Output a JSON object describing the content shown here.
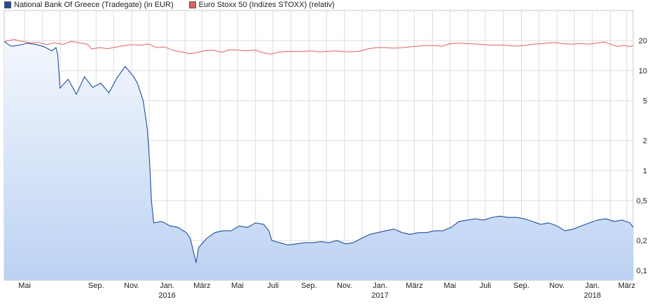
{
  "chart_data": {
    "type": "line",
    "title": "",
    "xlabel": "",
    "ylabel": "",
    "y_scale": "log",
    "ylim": [
      0.08,
      40
    ],
    "y_ticks": [
      {
        "value": 20,
        "label": "20"
      },
      {
        "value": 10,
        "label": "10"
      },
      {
        "value": 5,
        "label": "5"
      },
      {
        "value": 2,
        "label": "2"
      },
      {
        "value": 1,
        "label": "1"
      },
      {
        "value": 0.5,
        "label": "0,5"
      },
      {
        "value": 0.2,
        "label": "0,2"
      },
      {
        "value": 0.1,
        "label": "0,1"
      }
    ],
    "x_ticks": [
      {
        "date": "2015-05-01",
        "label": "Mai"
      },
      {
        "date": "2015-09-01",
        "label": "Sep."
      },
      {
        "date": "2015-11-01",
        "label": "Nov."
      },
      {
        "date": "2016-01-01",
        "label": "Jan.",
        "year": "2016"
      },
      {
        "date": "2016-03-01",
        "label": "März"
      },
      {
        "date": "2016-05-01",
        "label": "Mai"
      },
      {
        "date": "2016-07-01",
        "label": "Juli"
      },
      {
        "date": "2016-09-01",
        "label": "Sep."
      },
      {
        "date": "2016-11-01",
        "label": "Nov."
      },
      {
        "date": "2017-01-01",
        "label": "Jan.",
        "year": "2017"
      },
      {
        "date": "2017-03-01",
        "label": "März"
      },
      {
        "date": "2017-05-01",
        "label": "Mai"
      },
      {
        "date": "2017-07-01",
        "label": "Juli"
      },
      {
        "date": "2017-09-01",
        "label": "Sep."
      },
      {
        "date": "2017-11-01",
        "label": "Nov."
      },
      {
        "date": "2018-01-01",
        "label": "Jan.",
        "year": "2018"
      },
      {
        "date": "2018-03-01",
        "label": "März"
      }
    ],
    "x_range": [
      "2015-03-27",
      "2018-03-12"
    ],
    "grid": true,
    "legend_position": "top-left",
    "series": [
      {
        "name": "National Bank Of Greece (Tradegate) (in EUR)",
        "color": "#1f4e9c",
        "fill": true,
        "points": [
          [
            "2015-03-27",
            19.5
          ],
          [
            "2015-04-08",
            17.5
          ],
          [
            "2015-04-22",
            18.0
          ],
          [
            "2015-05-06",
            18.8
          ],
          [
            "2015-05-20",
            18.3
          ],
          [
            "2015-06-03",
            17.4
          ],
          [
            "2015-06-17",
            15.8
          ],
          [
            "2015-06-24",
            17.0
          ],
          [
            "2015-06-27",
            14.5
          ],
          [
            "2015-07-01",
            6.7
          ],
          [
            "2015-07-15",
            8.2
          ],
          [
            "2015-07-29",
            5.8
          ],
          [
            "2015-08-12",
            8.7
          ],
          [
            "2015-08-26",
            6.8
          ],
          [
            "2015-09-09",
            7.5
          ],
          [
            "2015-09-23",
            6.0
          ],
          [
            "2015-10-07",
            8.5
          ],
          [
            "2015-10-21",
            11.0
          ],
          [
            "2015-11-04",
            8.8
          ],
          [
            "2015-11-11",
            7.5
          ],
          [
            "2015-11-21",
            5.0
          ],
          [
            "2015-11-28",
            2.6
          ],
          [
            "2015-12-02",
            1.2
          ],
          [
            "2015-12-05",
            0.5
          ],
          [
            "2015-12-09",
            0.3
          ],
          [
            "2015-12-23",
            0.31
          ],
          [
            "2016-01-06",
            0.28
          ],
          [
            "2016-01-20",
            0.27
          ],
          [
            "2016-02-03",
            0.24
          ],
          [
            "2016-02-10",
            0.21
          ],
          [
            "2016-02-17",
            0.14
          ],
          [
            "2016-02-20",
            0.12
          ],
          [
            "2016-02-24",
            0.17
          ],
          [
            "2016-03-09",
            0.21
          ],
          [
            "2016-03-23",
            0.24
          ],
          [
            "2016-04-06",
            0.25
          ],
          [
            "2016-04-20",
            0.25
          ],
          [
            "2016-05-04",
            0.28
          ],
          [
            "2016-05-18",
            0.27
          ],
          [
            "2016-06-01",
            0.3
          ],
          [
            "2016-06-15",
            0.29
          ],
          [
            "2016-06-24",
            0.25
          ],
          [
            "2016-06-29",
            0.2
          ],
          [
            "2016-07-13",
            0.19
          ],
          [
            "2016-07-27",
            0.18
          ],
          [
            "2016-08-10",
            0.185
          ],
          [
            "2016-08-24",
            0.19
          ],
          [
            "2016-09-07",
            0.19
          ],
          [
            "2016-09-21",
            0.195
          ],
          [
            "2016-10-05",
            0.19
          ],
          [
            "2016-10-19",
            0.2
          ],
          [
            "2016-11-02",
            0.185
          ],
          [
            "2016-11-16",
            0.19
          ],
          [
            "2016-11-30",
            0.21
          ],
          [
            "2016-12-14",
            0.23
          ],
          [
            "2016-12-28",
            0.24
          ],
          [
            "2017-01-11",
            0.25
          ],
          [
            "2017-01-25",
            0.26
          ],
          [
            "2017-02-08",
            0.24
          ],
          [
            "2017-02-22",
            0.23
          ],
          [
            "2017-03-08",
            0.24
          ],
          [
            "2017-03-22",
            0.24
          ],
          [
            "2017-04-05",
            0.25
          ],
          [
            "2017-04-19",
            0.25
          ],
          [
            "2017-05-03",
            0.27
          ],
          [
            "2017-05-17",
            0.31
          ],
          [
            "2017-05-31",
            0.32
          ],
          [
            "2017-06-14",
            0.33
          ],
          [
            "2017-06-28",
            0.32
          ],
          [
            "2017-07-12",
            0.34
          ],
          [
            "2017-07-26",
            0.35
          ],
          [
            "2017-08-09",
            0.34
          ],
          [
            "2017-08-23",
            0.34
          ],
          [
            "2017-09-06",
            0.33
          ],
          [
            "2017-09-20",
            0.31
          ],
          [
            "2017-10-04",
            0.29
          ],
          [
            "2017-10-18",
            0.3
          ],
          [
            "2017-11-01",
            0.28
          ],
          [
            "2017-11-15",
            0.25
          ],
          [
            "2017-11-29",
            0.26
          ],
          [
            "2017-12-13",
            0.28
          ],
          [
            "2017-12-27",
            0.3
          ],
          [
            "2018-01-10",
            0.32
          ],
          [
            "2018-01-24",
            0.33
          ],
          [
            "2018-02-07",
            0.31
          ],
          [
            "2018-02-21",
            0.32
          ],
          [
            "2018-03-07",
            0.3
          ],
          [
            "2018-03-12",
            0.27
          ]
        ]
      },
      {
        "name": "Euro Stoxx 50 (Indizes STOXX) (relativ)",
        "color": "#e06060",
        "fill": false,
        "points": [
          [
            "2015-03-27",
            19.5
          ],
          [
            "2015-04-13",
            20.5
          ],
          [
            "2015-04-27",
            19.6
          ],
          [
            "2015-05-11",
            19.0
          ],
          [
            "2015-05-25",
            19.2
          ],
          [
            "2015-06-08",
            18.2
          ],
          [
            "2015-06-22",
            19.0
          ],
          [
            "2015-07-06",
            18.3
          ],
          [
            "2015-07-20",
            19.6
          ],
          [
            "2015-08-03",
            19.0
          ],
          [
            "2015-08-17",
            18.4
          ],
          [
            "2015-08-24",
            16.5
          ],
          [
            "2015-09-07",
            17.0
          ],
          [
            "2015-09-21",
            16.6
          ],
          [
            "2015-10-05",
            17.2
          ],
          [
            "2015-10-19",
            17.8
          ],
          [
            "2015-11-02",
            18.2
          ],
          [
            "2015-11-16",
            18.0
          ],
          [
            "2015-11-30",
            18.5
          ],
          [
            "2015-12-14",
            17.0
          ],
          [
            "2015-12-28",
            17.3
          ],
          [
            "2016-01-11",
            16.0
          ],
          [
            "2016-01-25",
            15.4
          ],
          [
            "2016-02-08",
            14.8
          ],
          [
            "2016-02-22",
            15.2
          ],
          [
            "2016-03-07",
            15.9
          ],
          [
            "2016-03-21",
            16.0
          ],
          [
            "2016-04-04",
            15.3
          ],
          [
            "2016-04-18",
            16.2
          ],
          [
            "2016-05-02",
            16.0
          ],
          [
            "2016-05-16",
            15.8
          ],
          [
            "2016-05-30",
            16.1
          ],
          [
            "2016-06-13",
            15.2
          ],
          [
            "2016-06-27",
            14.6
          ],
          [
            "2016-07-11",
            15.3
          ],
          [
            "2016-07-25",
            15.6
          ],
          [
            "2016-08-08",
            15.5
          ],
          [
            "2016-08-22",
            15.6
          ],
          [
            "2016-09-05",
            15.8
          ],
          [
            "2016-09-19",
            15.4
          ],
          [
            "2016-10-03",
            15.6
          ],
          [
            "2016-10-17",
            15.8
          ],
          [
            "2016-10-31",
            15.5
          ],
          [
            "2016-11-14",
            15.4
          ],
          [
            "2016-11-28",
            15.7
          ],
          [
            "2016-12-12",
            16.6
          ],
          [
            "2016-12-26",
            17.0
          ],
          [
            "2017-01-09",
            17.0
          ],
          [
            "2017-01-23",
            16.8
          ],
          [
            "2017-02-06",
            16.9
          ],
          [
            "2017-02-20",
            17.3
          ],
          [
            "2017-03-06",
            17.6
          ],
          [
            "2017-03-20",
            17.8
          ],
          [
            "2017-04-03",
            17.8
          ],
          [
            "2017-04-17",
            17.5
          ],
          [
            "2017-05-01",
            18.6
          ],
          [
            "2017-05-15",
            18.9
          ],
          [
            "2017-05-29",
            18.7
          ],
          [
            "2017-06-12",
            18.5
          ],
          [
            "2017-06-26",
            18.3
          ],
          [
            "2017-07-10",
            18.0
          ],
          [
            "2017-07-24",
            18.1
          ],
          [
            "2017-08-07",
            17.9
          ],
          [
            "2017-08-21",
            17.6
          ],
          [
            "2017-09-04",
            17.8
          ],
          [
            "2017-09-18",
            18.3
          ],
          [
            "2017-10-02",
            18.6
          ],
          [
            "2017-10-16",
            18.9
          ],
          [
            "2017-10-30",
            19.1
          ],
          [
            "2017-11-13",
            18.6
          ],
          [
            "2017-11-27",
            18.4
          ],
          [
            "2017-12-11",
            18.7
          ],
          [
            "2017-12-25",
            18.4
          ],
          [
            "2018-01-08",
            18.9
          ],
          [
            "2018-01-22",
            19.4
          ],
          [
            "2018-02-05",
            18.1
          ],
          [
            "2018-02-12",
            17.5
          ],
          [
            "2018-02-26",
            17.9
          ],
          [
            "2018-03-05",
            17.4
          ],
          [
            "2018-03-12",
            17.8
          ]
        ]
      }
    ]
  }
}
